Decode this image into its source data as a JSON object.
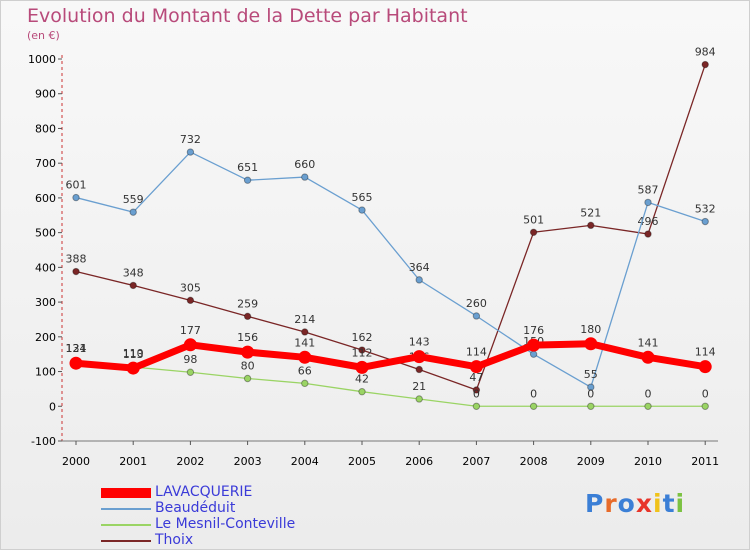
{
  "title": "Evolution du Montant de la Dette par Habitant",
  "subtitle": "(en €)",
  "chart_data": {
    "type": "line",
    "x": [
      "2000",
      "2001",
      "2002",
      "2003",
      "2004",
      "2005",
      "2006",
      "2007",
      "2008",
      "2009",
      "2010",
      "2011"
    ],
    "ylim": [
      -100,
      1000
    ],
    "yticks": [
      "-100",
      "0",
      "100",
      "200",
      "300",
      "400",
      "500",
      "600",
      "700",
      "800",
      "900",
      "1000"
    ],
    "grid": false,
    "legend_position": "bottom-left",
    "series": [
      {
        "name": "Thoix",
        "color": "#7a2626",
        "values": [
          388,
          348,
          305,
          259,
          214,
          162,
          106,
          47,
          501,
          521,
          496,
          984
        ],
        "labels": [
          "388",
          "348",
          "305",
          "259",
          "214",
          "162",
          "106",
          "47",
          "501",
          "521",
          "496",
          "984"
        ]
      },
      {
        "name": "Beaudéduit",
        "color": "#6a9fd0",
        "values": [
          601,
          559,
          732,
          651,
          660,
          565,
          364,
          260,
          150,
          55,
          587,
          532
        ],
        "labels": [
          "601",
          "559",
          "732",
          "651",
          "660",
          "565",
          "364",
          "260",
          "150",
          "55",
          "587",
          "532"
        ]
      },
      {
        "name": "Le Mesnil-Conteville",
        "color": "#9ad464",
        "values": [
          131,
          113,
          98,
          80,
          66,
          42,
          21,
          0,
          0,
          0,
          0,
          0
        ],
        "labels": [
          "131",
          "113",
          "98",
          "80",
          "66",
          "42",
          "21",
          "0",
          "0",
          "0",
          "0",
          "0"
        ]
      },
      {
        "name": "LAVACQUERIE",
        "color": "#ff0000",
        "values": [
          124,
          110,
          177,
          156,
          141,
          112,
          143,
          114,
          176,
          180,
          141,
          114
        ],
        "labels": [
          "124",
          "110",
          "177",
          "156",
          "141",
          "112",
          "143",
          "114",
          "176",
          "180",
          "141",
          "114"
        ]
      }
    ],
    "legend": [
      "LAVACQUERIE",
      "Beaudéduit",
      "Le Mesnil-Conteville",
      "Thoix"
    ]
  },
  "logo": {
    "text": "Proxiti",
    "colors": [
      "#3b7fd6",
      "#e86b2a",
      "#3b7fd6",
      "#e8352a",
      "#f0c21a",
      "#3b7fd6",
      "#7cc242"
    ]
  }
}
